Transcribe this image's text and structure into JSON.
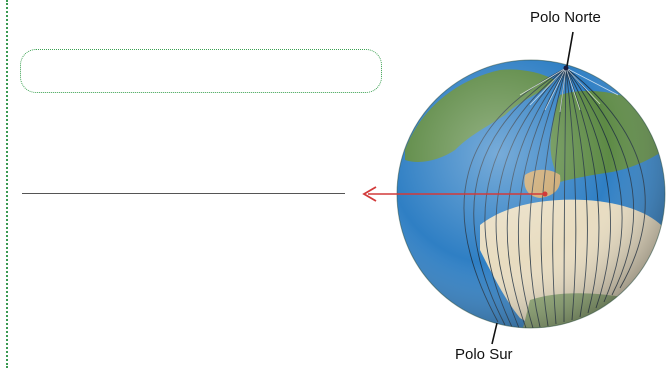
{
  "labels": {
    "north_pole": "Polo Norte",
    "south_pole": "Polo Sur"
  },
  "answer_box": {
    "value": ""
  },
  "answer_line": {
    "value": ""
  },
  "colors": {
    "ocean": "#2f7fc4",
    "land_green": "#5d8a45",
    "land_desert": "#e8dcc0",
    "meridian": "#1a2b3c",
    "arrow": "#d23a3a",
    "dotted_border": "#3a9a52"
  }
}
